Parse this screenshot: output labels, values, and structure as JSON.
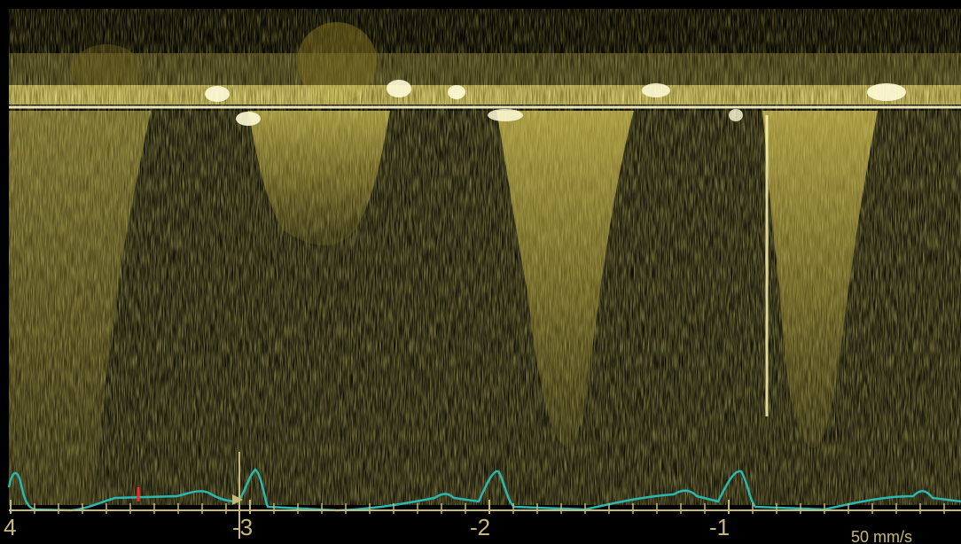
{
  "display": {
    "spectrum_color": "#e8dc6a",
    "ecg_color": "#2ab8b0",
    "scale_color": "#c8b878",
    "marker_color": "#ff2a2a",
    "background_color": "#000000"
  },
  "time_axis": {
    "labels": [
      "4",
      "-3",
      "-2",
      "-1"
    ]
  },
  "sweep_speed": "50 mm/s"
}
